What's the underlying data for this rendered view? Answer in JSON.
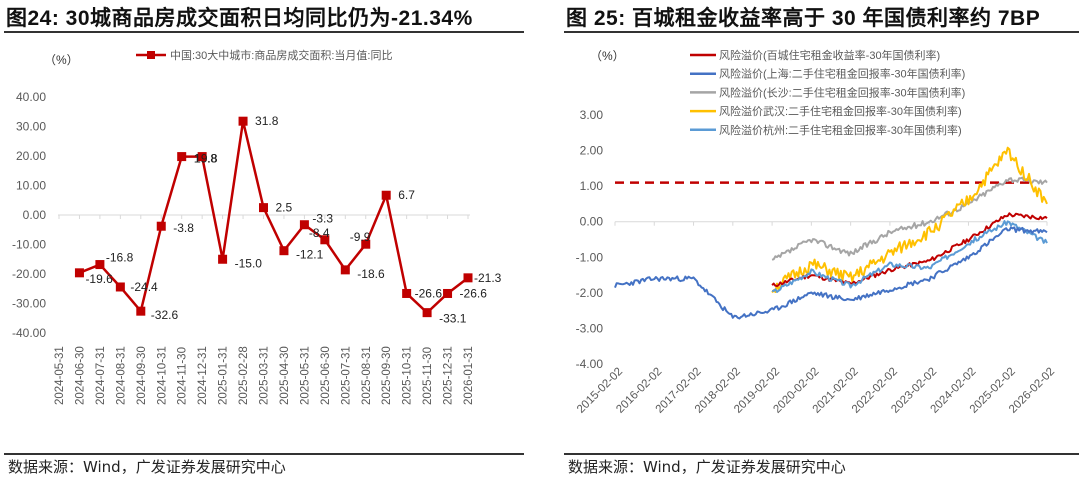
{
  "left": {
    "title": "图24:  30城商品房成交面积日均同比仍为-21.34%",
    "unit": "（%）",
    "legend": "中国:30大中城市:商品房成交面积:当月值:同比",
    "source": "数据来源：Wind，广发证券发展研究中心",
    "colors": {
      "line": "#C00000",
      "axis": "#D9D9D9",
      "tick_text": "#595959"
    }
  },
  "right": {
    "title": "图 25:  百城租金收益率高于 30 年国债利率约 7BP",
    "unit": "（%）",
    "source": "数据来源：Wind，广发证券发展研究中心",
    "legend": [
      {
        "label": "风险溢价(百城住宅租金收益率-30年国债利率)",
        "color": "#C00000"
      },
      {
        "label": "风险溢价(上海:二手住宅租金回报率-30年国债利率)",
        "color": "#4472C4"
      },
      {
        "label": "风险溢价(长沙:二手住宅租金回报率-30年国债利率)",
        "color": "#A5A5A5"
      },
      {
        "label": "风险溢价武汉:二手住宅租金回报率-30年国债利率)",
        "color": "#FFC000"
      },
      {
        "label": "风险溢价杭州:二手住宅租金回报率-30年国债利率)",
        "color": "#5B9BD5"
      }
    ]
  },
  "chart_data": [
    {
      "type": "line",
      "title": "图24: 30城商品房成交面积日均同比仍为-21.34%",
      "xlabel": "",
      "ylabel": "（%）",
      "ylim": [
        -40,
        40
      ],
      "yticks": [
        "40.00",
        "30.00",
        "20.00",
        "10.00",
        "0.00",
        "-10.00",
        "-20.00",
        "-30.00",
        "-40.00"
      ],
      "categories": [
        "2024-05-31",
        "2024-06-30",
        "2024-07-31",
        "2024-08-31",
        "2024-09-30",
        "2024-10-31",
        "2024-11-30",
        "2024-12-31",
        "2025-01-31",
        "2025-02-28",
        "2025-03-31",
        "2025-04-30",
        "2025-05-31",
        "2025-06-30",
        "2025-07-31",
        "2025-08-31",
        "2025-09-30",
        "2025-10-31",
        "2025-11-30",
        "2025-12-31",
        "2026-01-31"
      ],
      "series": [
        {
          "name": "中国:30大中城市:商品房成交面积:当月值:同比",
          "values": [
            null,
            -19.6,
            -16.8,
            -24.4,
            -32.6,
            -3.8,
            19.8,
            19.8,
            -15.0,
            31.8,
            2.5,
            -12.1,
            -3.3,
            -8.4,
            -18.6,
            -9.9,
            6.7,
            -26.6,
            -33.1,
            -26.6,
            -21.3
          ],
          "labels": [
            "",
            "-19.6",
            "-16.8",
            "-24.4",
            "-32.6",
            "-3.8",
            "19.8",
            "19.8",
            "-15.0",
            "31.8",
            "2.5",
            "-12.1",
            "-3.3",
            "-8.4",
            "-18.6",
            "-9.9",
            "6.7",
            "-26.6",
            "-33.1",
            "-26.6",
            "-21.3"
          ],
          "color": "#C00000",
          "marker": "square"
        }
      ],
      "grid": false,
      "legend_position": "top"
    },
    {
      "type": "line",
      "title": "图 25: 百城租金收益率高于 30 年国债利率约 7BP",
      "xlabel": "",
      "ylabel": "（%）",
      "ylim": [
        -4,
        3
      ],
      "yticks": [
        "3.00",
        "2.00",
        "1.00",
        "0.00",
        "-1.00",
        "-2.00",
        "-3.00",
        "-4.00"
      ],
      "x": [
        "2015-02-02",
        "2016-02-02",
        "2017-02-02",
        "2018-02-02",
        "2019-02-02",
        "2020-02-02",
        "2021-02-02",
        "2022-02-02",
        "2023-02-02",
        "2024-02-02",
        "2025-02-02",
        "2026-02-02"
      ],
      "series": [
        {
          "name": "风险溢价(百城住宅租金收益率-30年国债利率)",
          "color": "#C00000",
          "values": [
            null,
            null,
            null,
            null,
            -1.8,
            -1.5,
            -1.75,
            -1.35,
            -1.1,
            -0.5,
            0.2,
            0.1
          ]
        },
        {
          "name": "风险溢价(上海:二手住宅租金回报率-30年国债利率)",
          "color": "#4472C4",
          "values": [
            -1.8,
            -1.6,
            -1.6,
            -2.7,
            -2.5,
            -2.0,
            -2.2,
            -1.9,
            -1.6,
            -1.0,
            -0.2,
            -0.3
          ]
        },
        {
          "name": "风险溢价(长沙:二手住宅租金回报率-30年国债利率)",
          "color": "#A5A5A5",
          "values": [
            null,
            null,
            null,
            null,
            -1.1,
            -0.5,
            -0.9,
            -0.3,
            0.0,
            0.5,
            1.2,
            1.1
          ]
        },
        {
          "name": "风险溢价武汉:二手住宅租金回报率-30年国债利率)",
          "color": "#FFC000",
          "values": [
            null,
            null,
            null,
            null,
            -1.9,
            -1.2,
            -1.6,
            -0.9,
            -0.3,
            0.6,
            2.0,
            0.5
          ]
        },
        {
          "name": "风险溢价杭州:二手住宅租金回报率-30年国债利率)",
          "color": "#5B9BD5",
          "values": [
            null,
            null,
            null,
            null,
            -2.0,
            -1.4,
            -1.8,
            -1.2,
            -1.3,
            -0.6,
            0.0,
            -0.6
          ]
        }
      ],
      "reference_line": {
        "value": 1.1,
        "style": "dashed",
        "color": "#C00000"
      },
      "grid": false,
      "legend_position": "top"
    }
  ]
}
